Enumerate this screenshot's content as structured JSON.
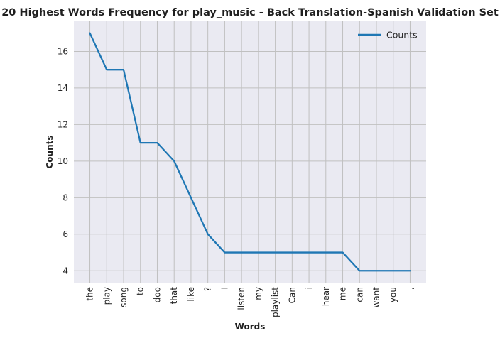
{
  "chart_data": {
    "type": "line",
    "title": "20 Highest Words Frequency for play_music - Back Translation-Spanish Validation Set",
    "xlabel": "Words",
    "ylabel": "Counts",
    "categories": [
      "the",
      "play",
      "song",
      "to",
      "doo",
      "that",
      "like",
      "?",
      "I",
      "listen",
      "my",
      "playlist",
      "Can",
      "i",
      "hear",
      "me",
      "can",
      "want",
      "you",
      ","
    ],
    "series": [
      {
        "name": "Counts",
        "values": [
          17,
          15,
          15,
          11,
          11,
          10,
          8,
          6,
          5,
          5,
          5,
          5,
          5,
          5,
          5,
          5,
          4,
          4,
          4,
          4
        ],
        "color": "#1f77b4"
      }
    ],
    "ylim": [
      3.35,
      17.65
    ],
    "yticks": [
      4,
      6,
      8,
      10,
      12,
      14,
      16
    ],
    "grid": true,
    "legend_position": "top-right",
    "background": "#eaeaf2",
    "grid_color": "#c0c0c0"
  }
}
